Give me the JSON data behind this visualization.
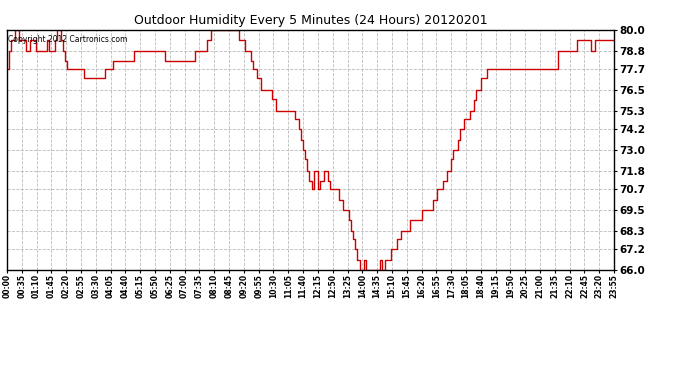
{
  "title": "Outdoor Humidity Every 5 Minutes (24 Hours) 20120201",
  "copyright_text": "Copyright 2012 Cartronics.com",
  "line_color": "#cc0000",
  "background_color": "#ffffff",
  "plot_bg_color": "#ffffff",
  "grid_color": "#bbbbbb",
  "ylim": [
    66.0,
    80.0
  ],
  "yticks": [
    66.0,
    67.2,
    68.3,
    69.5,
    70.7,
    71.8,
    73.0,
    74.2,
    75.3,
    76.5,
    77.7,
    78.8,
    80.0
  ],
  "xtick_labels": [
    "00:00",
    "00:35",
    "01:10",
    "01:45",
    "02:20",
    "02:55",
    "03:30",
    "04:05",
    "04:40",
    "05:15",
    "05:50",
    "06:25",
    "07:00",
    "07:35",
    "08:10",
    "08:45",
    "09:20",
    "09:55",
    "10:30",
    "11:05",
    "11:40",
    "12:15",
    "12:50",
    "13:25",
    "14:00",
    "14:35",
    "15:10",
    "15:45",
    "16:20",
    "16:55",
    "17:30",
    "18:05",
    "18:40",
    "19:15",
    "19:50",
    "20:25",
    "21:00",
    "21:35",
    "22:10",
    "22:45",
    "23:20",
    "23:55"
  ],
  "humidity_values": [
    77.7,
    78.8,
    79.4,
    79.4,
    80.0,
    80.0,
    79.4,
    79.4,
    79.4,
    78.8,
    78.8,
    79.4,
    79.4,
    79.4,
    78.8,
    78.8,
    78.8,
    78.8,
    78.8,
    79.4,
    78.8,
    78.8,
    78.8,
    79.4,
    80.6,
    80.0,
    79.4,
    78.8,
    78.2,
    77.7,
    77.7,
    77.7,
    77.7,
    77.7,
    77.7,
    77.7,
    77.7,
    77.2,
    77.2,
    77.2,
    77.2,
    77.2,
    77.2,
    77.2,
    77.2,
    77.2,
    77.2,
    77.7,
    77.7,
    77.7,
    77.7,
    78.2,
    78.2,
    78.2,
    78.2,
    78.2,
    78.2,
    78.2,
    78.2,
    78.2,
    78.2,
    78.8,
    78.8,
    78.8,
    78.8,
    78.8,
    78.8,
    78.8,
    78.8,
    78.8,
    78.8,
    78.8,
    78.8,
    78.8,
    78.8,
    78.8,
    78.2,
    78.2,
    78.2,
    78.2,
    78.2,
    78.2,
    78.2,
    78.2,
    78.2,
    78.2,
    78.2,
    78.2,
    78.2,
    78.2,
    78.8,
    78.8,
    78.8,
    78.8,
    78.8,
    78.8,
    79.4,
    79.4,
    80.0,
    80.0,
    80.0,
    80.0,
    80.0,
    80.0,
    80.0,
    80.0,
    80.0,
    80.0,
    80.0,
    80.0,
    80.0,
    79.4,
    79.4,
    79.4,
    78.8,
    78.8,
    78.8,
    78.2,
    77.7,
    77.7,
    77.2,
    77.2,
    76.5,
    76.5,
    76.5,
    76.5,
    76.5,
    76.0,
    76.0,
    75.3,
    75.3,
    75.3,
    75.3,
    75.3,
    75.3,
    75.3,
    75.3,
    75.3,
    74.8,
    74.8,
    74.2,
    73.6,
    73.0,
    72.5,
    71.8,
    71.2,
    70.7,
    71.8,
    71.8,
    70.7,
    71.2,
    71.2,
    71.8,
    71.8,
    71.2,
    70.7,
    70.7,
    70.7,
    70.7,
    70.1,
    70.1,
    69.5,
    69.5,
    69.5,
    68.9,
    68.3,
    67.8,
    67.2,
    66.6,
    66.0,
    66.0,
    66.6,
    66.0,
    66.0,
    66.0,
    66.0,
    66.0,
    66.0,
    66.0,
    66.6,
    66.0,
    66.6,
    66.6,
    66.6,
    67.2,
    67.2,
    67.2,
    67.8,
    67.8,
    68.3,
    68.3,
    68.3,
    68.3,
    68.9,
    68.9,
    68.9,
    68.9,
    68.9,
    68.9,
    69.5,
    69.5,
    69.5,
    69.5,
    69.5,
    70.1,
    70.1,
    70.7,
    70.7,
    70.7,
    71.2,
    71.2,
    71.8,
    71.8,
    72.5,
    73.0,
    73.0,
    73.6,
    74.2,
    74.2,
    74.8,
    74.8,
    74.8,
    75.3,
    75.3,
    75.9,
    76.5,
    76.5,
    77.2,
    77.2,
    77.2,
    77.7,
    77.7,
    77.7,
    77.7,
    77.7,
    77.7,
    77.7,
    77.7,
    77.7,
    77.7,
    77.7,
    77.7,
    77.7,
    77.7,
    77.7,
    77.7,
    77.7,
    77.7,
    77.7,
    77.7,
    77.7,
    77.7,
    77.7,
    77.7,
    77.7,
    77.7,
    77.7,
    77.7,
    77.7,
    77.7,
    77.7,
    77.7,
    77.7,
    77.7,
    78.8,
    78.8,
    78.8,
    78.8,
    78.8,
    78.8,
    78.8,
    78.8,
    78.8,
    79.4,
    79.4,
    79.4,
    79.4,
    79.4,
    79.4,
    79.4,
    78.8,
    78.8,
    79.4,
    79.4,
    79.4,
    79.4,
    79.4,
    79.4,
    79.4,
    79.4,
    79.4,
    79.4
  ]
}
